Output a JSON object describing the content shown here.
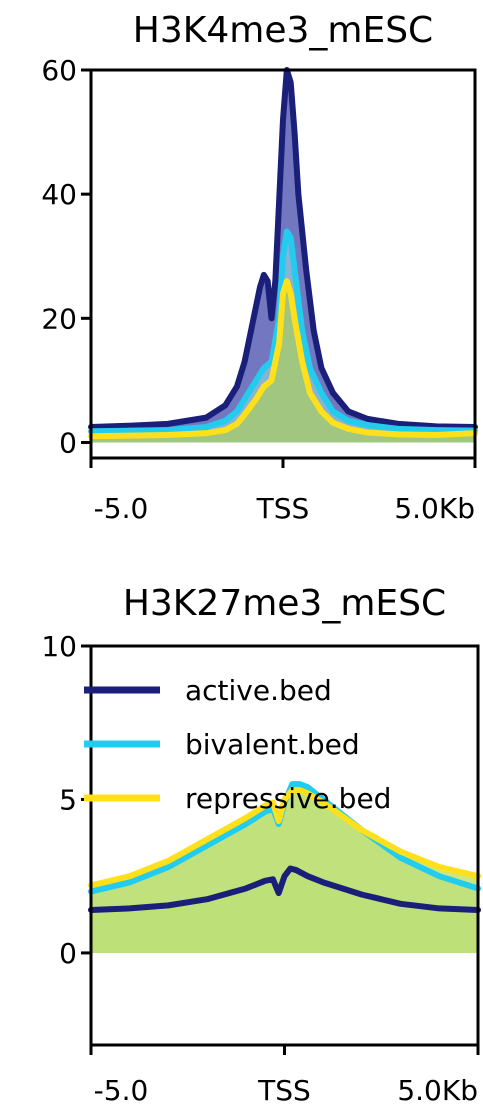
{
  "chart_data": [
    {
      "type": "area",
      "title": "H3K4me3_mESC",
      "xlabel": "",
      "ylabel": "",
      "x_range": [
        -5.0,
        5.0
      ],
      "ylim": [
        -2.5,
        60
      ],
      "x_tick_labels": [
        "-5.0",
        "TSS",
        "5.0Kb"
      ],
      "y_ticks": [
        0,
        20,
        40,
        60
      ],
      "legend": null,
      "series": [
        {
          "name": "active.bed",
          "color": "#1a1f7a",
          "fill": "#7277bf",
          "x": [
            -5.0,
            -4.0,
            -3.0,
            -2.0,
            -1.5,
            -1.2,
            -1.0,
            -0.8,
            -0.6,
            -0.5,
            -0.4,
            -0.3,
            -0.2,
            0.0,
            0.1,
            0.2,
            0.3,
            0.4,
            0.6,
            0.8,
            1.0,
            1.3,
            1.7,
            2.2,
            3.0,
            4.0,
            5.0
          ],
          "y": [
            2.5,
            2.7,
            3.0,
            4.0,
            6.0,
            9.0,
            13.0,
            19.0,
            25.0,
            27.0,
            26.0,
            20.0,
            26.0,
            52.0,
            60.0,
            58.0,
            50.0,
            40.0,
            28.0,
            18.0,
            12.0,
            8.0,
            5.0,
            3.8,
            3.0,
            2.6,
            2.5
          ]
        },
        {
          "name": "bivalent.bed",
          "color": "#22ccee",
          "fill": "#8fc7df",
          "x": [
            -5.0,
            -4.0,
            -3.0,
            -2.0,
            -1.5,
            -1.2,
            -1.0,
            -0.7,
            -0.5,
            -0.3,
            -0.1,
            0.0,
            0.1,
            0.2,
            0.3,
            0.5,
            0.7,
            1.0,
            1.3,
            1.7,
            2.2,
            3.0,
            4.0,
            5.0
          ],
          "y": [
            1.8,
            1.9,
            2.0,
            2.5,
            3.5,
            5.0,
            7.0,
            10.0,
            12.0,
            13.0,
            20.0,
            30.0,
            34.0,
            33.0,
            28.0,
            18.0,
            12.0,
            8.0,
            5.0,
            3.5,
            2.8,
            2.2,
            2.0,
            1.9
          ]
        },
        {
          "name": "repressive.bed",
          "color": "#ffe01a",
          "fill": "#a8cc62",
          "x": [
            -5.0,
            -4.0,
            -3.0,
            -2.0,
            -1.5,
            -1.2,
            -1.0,
            -0.7,
            -0.5,
            -0.3,
            -0.1,
            0.0,
            0.1,
            0.2,
            0.3,
            0.5,
            0.7,
            1.0,
            1.3,
            1.7,
            2.2,
            3.0,
            4.0,
            5.0
          ],
          "y": [
            1.0,
            1.1,
            1.2,
            1.5,
            2.0,
            3.0,
            4.5,
            7.0,
            9.0,
            10.0,
            16.0,
            24.0,
            26.0,
            24.0,
            20.0,
            13.0,
            8.0,
            5.0,
            3.2,
            2.2,
            1.6,
            1.3,
            1.2,
            1.5
          ]
        }
      ]
    },
    {
      "type": "area",
      "title": "H3K27me3_mESC",
      "xlabel": "",
      "ylabel": "",
      "x_range": [
        -5.0,
        5.0
      ],
      "ylim": [
        -3,
        10
      ],
      "x_tick_labels": [
        "-5.0",
        "TSS",
        "5.0Kb"
      ],
      "y_ticks": [
        0,
        5,
        10
      ],
      "legend": "top-left",
      "series": [
        {
          "name": "active.bed",
          "color": "#1a1f7a",
          "fill": "#a8cc62",
          "x": [
            -5.0,
            -4.0,
            -3.0,
            -2.0,
            -1.0,
            -0.5,
            -0.3,
            -0.15,
            0.0,
            0.15,
            0.3,
            0.6,
            1.0,
            2.0,
            3.0,
            4.0,
            5.0
          ],
          "y": [
            1.4,
            1.45,
            1.55,
            1.75,
            2.1,
            2.35,
            2.4,
            1.95,
            2.5,
            2.75,
            2.7,
            2.5,
            2.3,
            1.9,
            1.6,
            1.45,
            1.4
          ]
        },
        {
          "name": "bivalent.bed",
          "color": "#22ccee",
          "fill": "#8fd8e0",
          "x": [
            -5.0,
            -4.0,
            -3.0,
            -2.0,
            -1.0,
            -0.5,
            -0.3,
            -0.15,
            0.0,
            0.2,
            0.4,
            0.6,
            1.0,
            2.0,
            3.0,
            4.0,
            5.0
          ],
          "y": [
            2.0,
            2.3,
            2.8,
            3.5,
            4.2,
            4.6,
            4.7,
            4.2,
            4.9,
            5.5,
            5.5,
            5.4,
            5.0,
            4.0,
            3.1,
            2.5,
            2.1
          ]
        },
        {
          "name": "repressive.bed",
          "color": "#ffe01a",
          "fill": "#c5e26a",
          "x": [
            -5.0,
            -4.0,
            -3.0,
            -2.0,
            -1.0,
            -0.5,
            -0.3,
            -0.15,
            0.0,
            0.2,
            0.4,
            0.6,
            1.0,
            2.0,
            3.0,
            4.0,
            5.0
          ],
          "y": [
            2.2,
            2.5,
            3.0,
            3.7,
            4.4,
            4.8,
            4.9,
            4.3,
            5.0,
            5.3,
            5.3,
            5.2,
            4.9,
            4.0,
            3.3,
            2.8,
            2.5
          ]
        }
      ]
    }
  ]
}
